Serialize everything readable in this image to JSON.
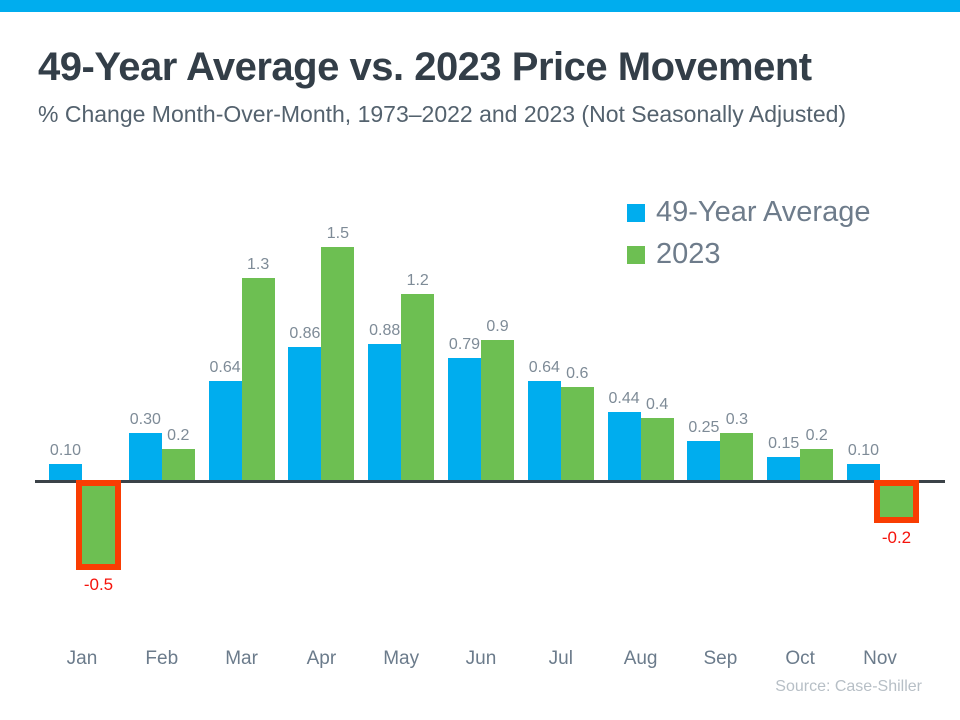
{
  "header": {
    "title": "49-Year Average vs. 2023 Price Movement",
    "subtitle": "% Change Month-Over-Month, 1973–2022 and 2023 (Not Seasonally Adjusted)"
  },
  "source": "Source: Case-Shiller",
  "colors": {
    "banner": "#00ADEE",
    "blue": "#00ADEE",
    "green": "#6DBF52",
    "axis": "#3B4248",
    "value_label": "#7E8B97",
    "month_label": "#6B7B8B",
    "legend_text": "#6E7C8B",
    "negative_box": "#F93D02",
    "negative_label": "#F5130B"
  },
  "chart_data": {
    "type": "bar",
    "categories": [
      "Jan",
      "Feb",
      "Mar",
      "Apr",
      "May",
      "Jun",
      "Jul",
      "Aug",
      "Sep",
      "Oct",
      "Nov"
    ],
    "series": [
      {
        "name": "49-Year Average",
        "color_key": "blue",
        "values": [
          0.1,
          0.3,
          0.64,
          0.86,
          0.88,
          0.79,
          0.64,
          0.44,
          0.25,
          0.15,
          0.1
        ],
        "labels": [
          "0.10",
          "0.30",
          "0.64",
          "0.86",
          "0.88",
          "0.79",
          "0.64",
          "0.44",
          "0.25",
          "0.15",
          "0.10"
        ]
      },
      {
        "name": "2023",
        "color_key": "green",
        "values": [
          -0.5,
          0.2,
          1.3,
          1.5,
          1.2,
          0.9,
          0.6,
          0.4,
          0.3,
          0.2,
          -0.2
        ],
        "labels": [
          "-0.5",
          "0.2",
          "1.3",
          "1.5",
          "1.2",
          "0.9",
          "0.6",
          "0.4",
          "0.3",
          "0.2",
          "-0.2"
        ]
      }
    ],
    "ylim": [
      -0.6,
      1.6
    ],
    "grid": false,
    "legend_position": "top-right",
    "negative_values_highlighted": true
  }
}
